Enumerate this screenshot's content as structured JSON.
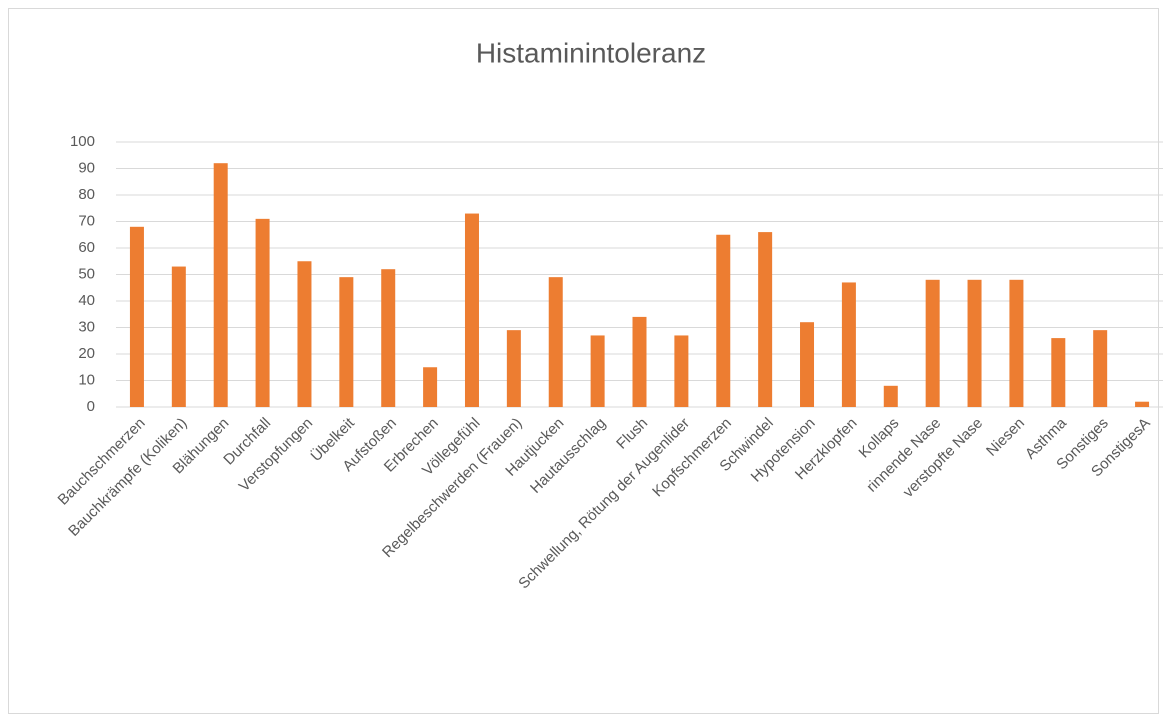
{
  "chart_data": {
    "type": "bar",
    "title": "Histaminintoleranz",
    "categories": [
      "Bauchschmerzen",
      "Bauchkrämpfe (Koliken)",
      "Blähungen",
      "Durchfall",
      "Verstopfungen",
      "Übelkeit",
      "Aufstoßen",
      "Erbrechen",
      "Völlegefühl",
      "Regelbeschwerden (Frauen)",
      "Hautjucken",
      "Hautausschlag",
      "Flush",
      "Schwellung, Rötung der Augenlider",
      "Kopfschmerzen",
      "Schwindel",
      "Hypotension",
      "Herzklopfen",
      "Kollaps",
      "rinnende Nase",
      "verstopfte Nase",
      "Niesen",
      "Asthma",
      "Sonstiges",
      "SonstigesA"
    ],
    "values": [
      68,
      53,
      92,
      71,
      55,
      49,
      52,
      15,
      73,
      29,
      49,
      27,
      34,
      27,
      65,
      66,
      32,
      47,
      8,
      48,
      48,
      48,
      26,
      29,
      2
    ],
    "color": "#ed7d31",
    "ylim": [
      0,
      100
    ],
    "yticks": [
      0,
      10,
      20,
      30,
      40,
      50,
      60,
      70,
      80,
      90,
      100
    ],
    "grid": true
  }
}
